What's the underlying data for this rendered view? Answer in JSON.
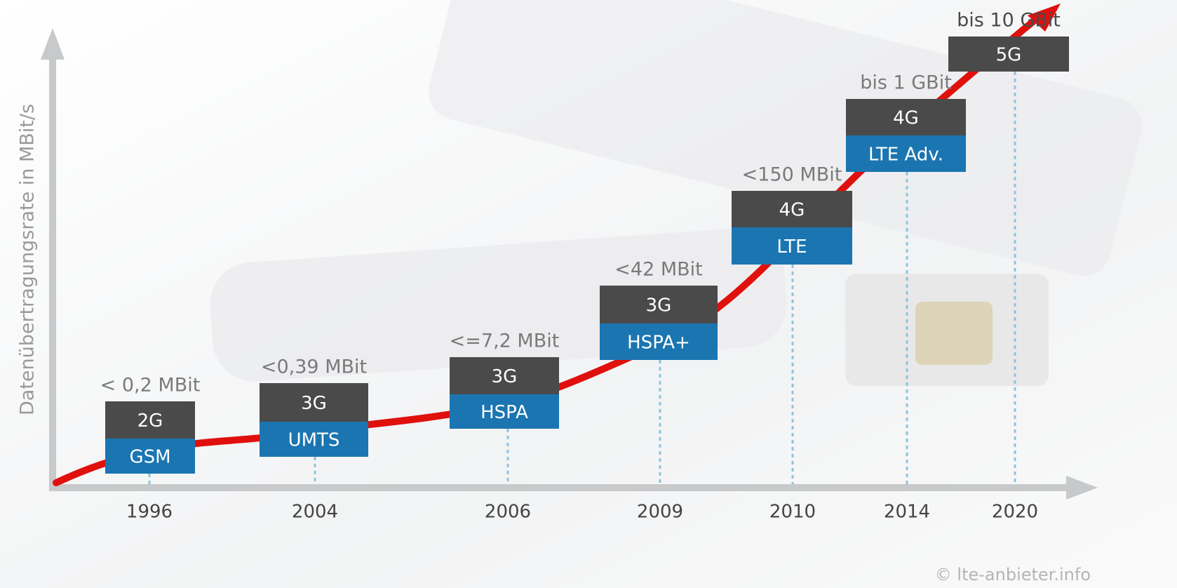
{
  "y_axis_label": "Datenübertragungsrate in MBit/s",
  "items": [
    {
      "year": "1996",
      "generation": "2G",
      "tech": "GSM",
      "speed": "< 0,2 MBit"
    },
    {
      "year": "2004",
      "generation": "3G",
      "tech": "UMTS",
      "speed": "<0,39 MBit"
    },
    {
      "year": "2006",
      "generation": "3G",
      "tech": "HSPA",
      "speed": "<=7,2 MBit"
    },
    {
      "year": "2009",
      "generation": "3G",
      "tech": "HSPA+",
      "speed": "<42 MBit"
    },
    {
      "year": "2010",
      "generation": "4G",
      "tech": "LTE",
      "speed": "<150 MBit"
    },
    {
      "year": "2014",
      "generation": "4G",
      "tech": "LTE Adv.",
      "speed": "bis 1 GBit"
    },
    {
      "year": "2020",
      "generation": "5G",
      "speed": "bis 10 GBit"
    }
  ],
  "copyright": "© lte-anbieter.info"
}
